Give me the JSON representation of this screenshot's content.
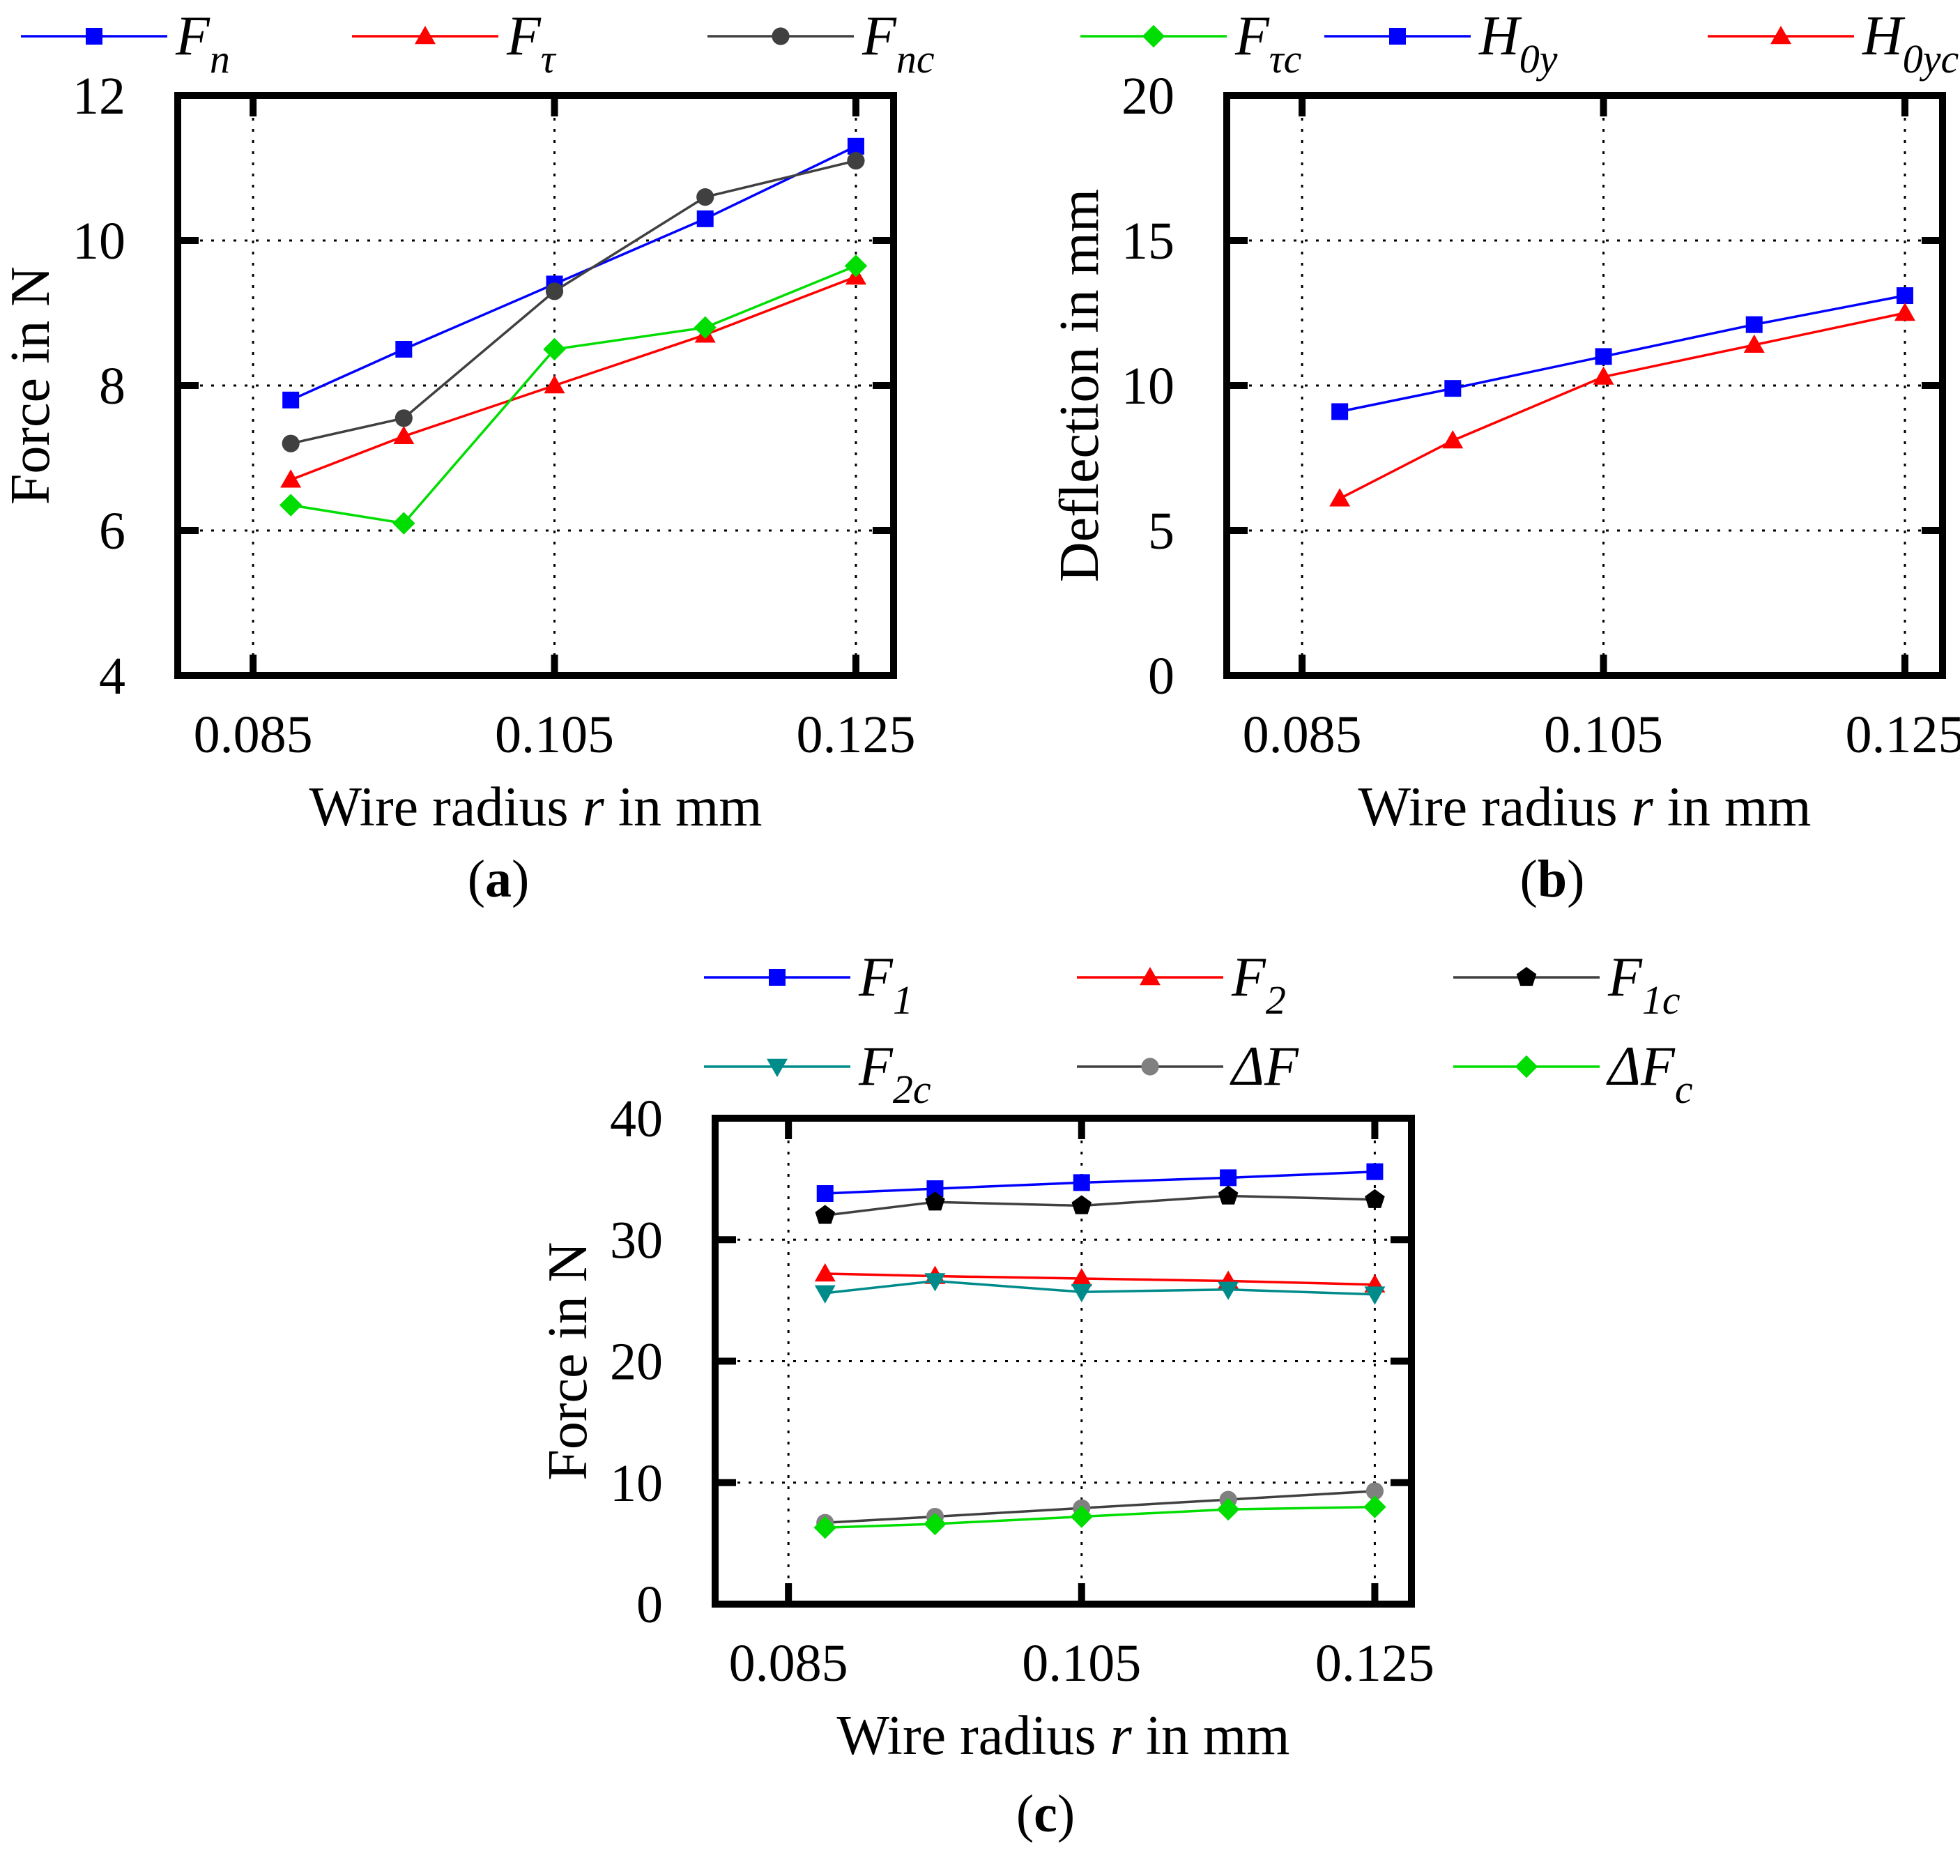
{
  "chart_data": [
    {
      "id": "a",
      "type": "line",
      "panel_label": "a",
      "xlabel": {
        "prefix": "Wire radius ",
        "var": "r",
        "suffix": " in mm"
      },
      "ylabel": "Force in N",
      "xlim": [
        0.08,
        0.1275
      ],
      "ylim": [
        4,
        12
      ],
      "xticks": [
        0.085,
        0.105,
        0.125
      ],
      "xtick_labels": [
        "0.085",
        "0.105",
        "0.125"
      ],
      "yticks": [
        4,
        6,
        8,
        10,
        12
      ],
      "ytick_labels": [
        "4",
        "6",
        "8",
        "10",
        "12"
      ],
      "grid": true,
      "legend_position": "top",
      "series": [
        {
          "name": "F",
          "sub": "n",
          "color": "#0000ff",
          "marker": "square",
          "x": [
            0.0875,
            0.095,
            0.105,
            0.115,
            0.125
          ],
          "y": [
            7.8,
            8.5,
            9.4,
            10.3,
            11.3
          ]
        },
        {
          "name": "F",
          "sub": "τ",
          "color": "#ff0000",
          "marker": "triangle-up",
          "x": [
            0.0875,
            0.095,
            0.105,
            0.115,
            0.125
          ],
          "y": [
            6.7,
            7.3,
            8.0,
            8.7,
            9.5
          ]
        },
        {
          "name": "F",
          "sub": "nc",
          "color": "#404040",
          "marker": "circle",
          "x": [
            0.0875,
            0.095,
            0.105,
            0.115,
            0.125
          ],
          "y": [
            7.2,
            7.55,
            9.3,
            10.6,
            11.1
          ]
        },
        {
          "name": "F",
          "sub": "τc",
          "color": "#00dd00",
          "marker": "diamond",
          "x": [
            0.0875,
            0.095,
            0.105,
            0.115,
            0.125
          ],
          "y": [
            6.35,
            6.1,
            8.5,
            8.8,
            9.65
          ]
        }
      ]
    },
    {
      "id": "b",
      "type": "line",
      "panel_label": "b",
      "xlabel": {
        "prefix": "Wire radius ",
        "var": "r",
        "suffix": " in mm"
      },
      "ylabel": "Deflection in mm",
      "xlim": [
        0.08,
        0.1275
      ],
      "ylim": [
        0,
        20
      ],
      "xticks": [
        0.085,
        0.105,
        0.125
      ],
      "xtick_labels": [
        "0.085",
        "0.105",
        "0.125"
      ],
      "yticks": [
        0,
        5,
        10,
        15,
        20
      ],
      "ytick_labels": [
        "0",
        "5",
        "10",
        "15",
        "20"
      ],
      "grid": true,
      "legend_position": "top",
      "series": [
        {
          "name": "H",
          "sub": "0y",
          "color": "#0000ff",
          "marker": "square",
          "x": [
            0.0875,
            0.095,
            0.105,
            0.115,
            0.125
          ],
          "y": [
            9.1,
            9.9,
            11.0,
            12.1,
            13.1
          ]
        },
        {
          "name": "H",
          "sub": "0yc",
          "color": "#ff0000",
          "marker": "triangle-up",
          "x": [
            0.0875,
            0.095,
            0.105,
            0.115,
            0.125
          ],
          "y": [
            6.1,
            8.1,
            10.3,
            11.4,
            12.5
          ]
        }
      ]
    },
    {
      "id": "c",
      "type": "line",
      "panel_label": "c",
      "xlabel": {
        "prefix": "Wire radius ",
        "var": "r",
        "suffix": " in mm"
      },
      "ylabel": "Force in N",
      "xlim": [
        0.08,
        0.1275
      ],
      "ylim": [
        0,
        40
      ],
      "xticks": [
        0.085,
        0.105,
        0.125
      ],
      "xtick_labels": [
        "0.085",
        "0.105",
        "0.125"
      ],
      "yticks": [
        0,
        10,
        20,
        30,
        40
      ],
      "ytick_labels": [
        "0",
        "10",
        "20",
        "30",
        "40"
      ],
      "grid": true,
      "legend_position": "top",
      "series": [
        {
          "name": "F",
          "sub": "1",
          "color": "#0000ff",
          "marker": "square",
          "x": [
            0.0875,
            0.095,
            0.105,
            0.115,
            0.125
          ],
          "y": [
            33.8,
            34.2,
            34.7,
            35.1,
            35.6
          ]
        },
        {
          "name": "F",
          "sub": "2",
          "color": "#ff0000",
          "marker": "triangle-up",
          "x": [
            0.0875,
            0.095,
            0.105,
            0.115,
            0.125
          ],
          "y": [
            27.2,
            27.0,
            26.8,
            26.6,
            26.3
          ]
        },
        {
          "name": "F",
          "sub": "1c",
          "color": "#000000",
          "line_color": "#404040",
          "marker": "pentagon",
          "x": [
            0.0875,
            0.095,
            0.105,
            0.115,
            0.125
          ],
          "y": [
            32.0,
            33.1,
            32.8,
            33.6,
            33.3
          ]
        },
        {
          "name": "F",
          "sub": "2c",
          "color": "#008b8b",
          "marker": "triangle-down",
          "x": [
            0.0875,
            0.095,
            0.105,
            0.115,
            0.125
          ],
          "y": [
            25.6,
            26.6,
            25.7,
            25.9,
            25.5
          ]
        },
        {
          "name": "ΔF",
          "sub": "",
          "color": "#808080",
          "line_color": "#404040",
          "marker": "circle",
          "x": [
            0.0875,
            0.095,
            0.105,
            0.115,
            0.125
          ],
          "y": [
            6.7,
            7.2,
            7.9,
            8.6,
            9.3
          ]
        },
        {
          "name": "ΔF",
          "sub": "c",
          "color": "#00dd00",
          "marker": "diamond",
          "x": [
            0.0875,
            0.095,
            0.105,
            0.115,
            0.125
          ],
          "y": [
            6.3,
            6.6,
            7.2,
            7.8,
            8.0
          ]
        }
      ]
    }
  ]
}
